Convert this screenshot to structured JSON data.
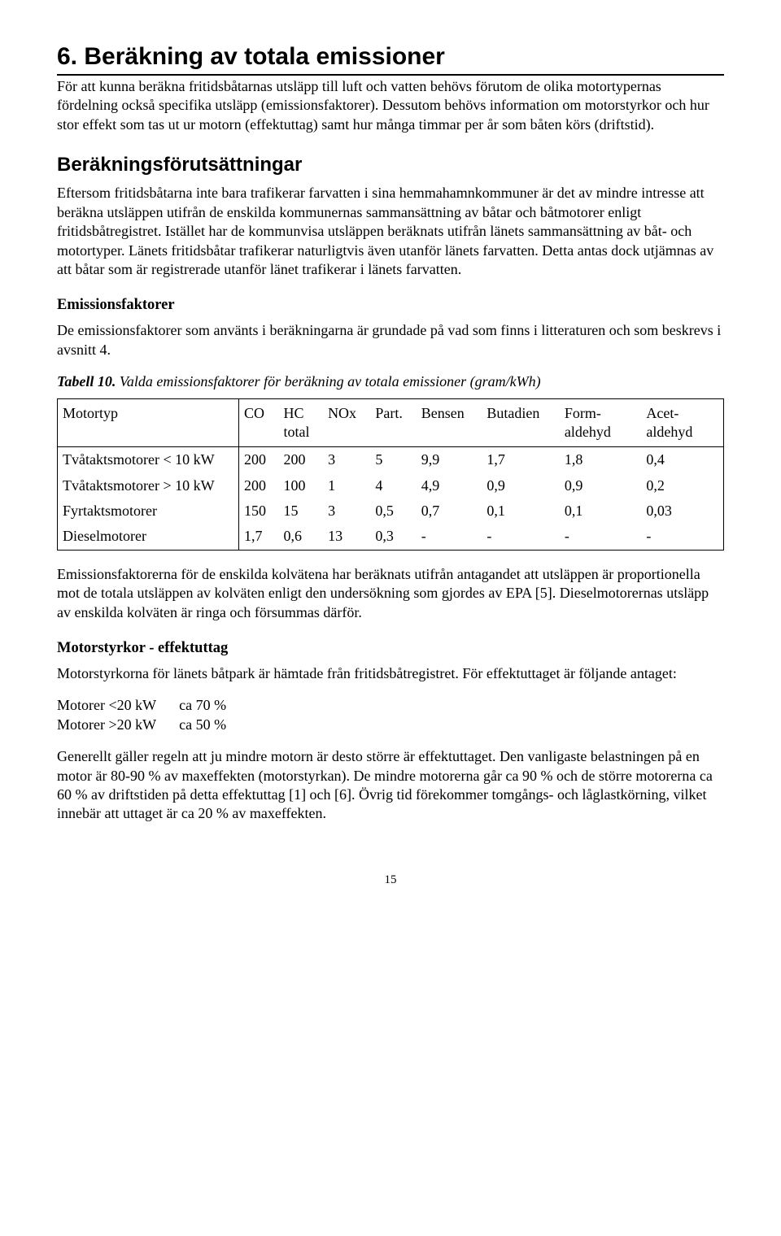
{
  "title": "6. Beräkning av totala emissioner",
  "para1": "För att kunna beräkna fritidsbåtarnas utsläpp till luft och vatten behövs förutom de olika motortypernas fördelning också specifika utsläpp (emissionsfaktorer). Dessutom behövs information om motorstyrkor och hur stor effekt som tas ut ur motorn (effektuttag) samt hur många timmar per år som båten körs (driftstid).",
  "h2": "Beräkningsförutsättningar",
  "para2": "Eftersom fritidsbåtarna inte bara trafikerar farvatten i sina hemmahamnkommuner är det av mindre intresse att beräkna utsläppen utifrån de enskilda kommunernas sammansättning av båtar och båtmotorer enligt fritidsbåtregistret. Istället har de kommunvisa utsläppen beräknats utifrån länets sammansättning av båt- och motortyper. Länets fritidsbåtar trafikerar naturligtvis även utanför länets farvatten. Detta antas dock utjämnas av att båtar som är registrerade utanför länet trafikerar i länets farvatten.",
  "h3a": "Emissionsfaktorer",
  "para3": "De emissionsfaktorer som använts i beräkningarna är grundade på vad som finns i litteraturen och som beskrevs i avsnitt 4.",
  "caption_bold": "Tabell 10.",
  "caption_rest": " Valda emissionsfaktorer för beräkning av totala emissioner (gram/kWh)",
  "table": {
    "headers": {
      "c0": "Motortyp",
      "c1": "CO",
      "c2a": "HC",
      "c2b": "total",
      "c3": "NOx",
      "c4": "Part.",
      "c5": "Bensen",
      "c6": "Butadien",
      "c7a": "Form-",
      "c7b": "aldehyd",
      "c8a": "Acet-",
      "c8b": "aldehyd"
    },
    "rows": [
      {
        "label": "Tvåtaktsmotorer < 10 kW",
        "co": "200",
        "hc": "200",
        "nox": "3",
        "part": "5",
        "bensen": "9,9",
        "butadien": "1,7",
        "form": "1,8",
        "acet": "0,4"
      },
      {
        "label": "Tvåtaktsmotorer > 10 kW",
        "co": "200",
        "hc": "100",
        "nox": "1",
        "part": "4",
        "bensen": "4,9",
        "butadien": "0,9",
        "form": "0,9",
        "acet": "0,2"
      },
      {
        "label": "Fyrtaktsmotorer",
        "co": "150",
        "hc": "15",
        "nox": "3",
        "part": "0,5",
        "bensen": "0,7",
        "butadien": "0,1",
        "form": "0,1",
        "acet": "0,03"
      },
      {
        "label": "Dieselmotorer",
        "co": "1,7",
        "hc": "0,6",
        "nox": "13",
        "part": "0,3",
        "bensen": "-",
        "butadien": "-",
        "form": "-",
        "acet": "-"
      }
    ]
  },
  "para4": "Emissionsfaktorerna för de enskilda kolvätena har beräknats utifrån antagandet att utsläppen är proportionella mot de totala utsläppen av kolväten enligt den undersökning som gjordes av EPA [5]. Dieselmotorernas utsläpp av enskilda kolväten är ringa och försummas därför.",
  "h3b": "Motorstyrkor - effektuttag",
  "para5": "Motorstyrkorna för länets båtpark är hämtade från fritidsbåtregistret. För effektuttaget är följande antaget:",
  "motor_rows": [
    {
      "label": "Motorer <20 kW",
      "val": "ca 70 %"
    },
    {
      "label": "Motorer >20 kW",
      "val": "ca 50 %"
    }
  ],
  "para6": "Generellt gäller regeln att ju mindre motorn är desto större är effektuttaget. Den vanligaste belastningen på en motor är 80-90 % av maxeffekten (motorstyrkan). De mindre motorerna går ca 90 % och de större motorerna ca 60 % av driftstiden på detta effektuttag [1] och [6]. Övrig tid förekommer tomgångs- och låglastkörning, vilket innebär att uttaget är ca 20 % av maxeffekten.",
  "pagenum": "15"
}
